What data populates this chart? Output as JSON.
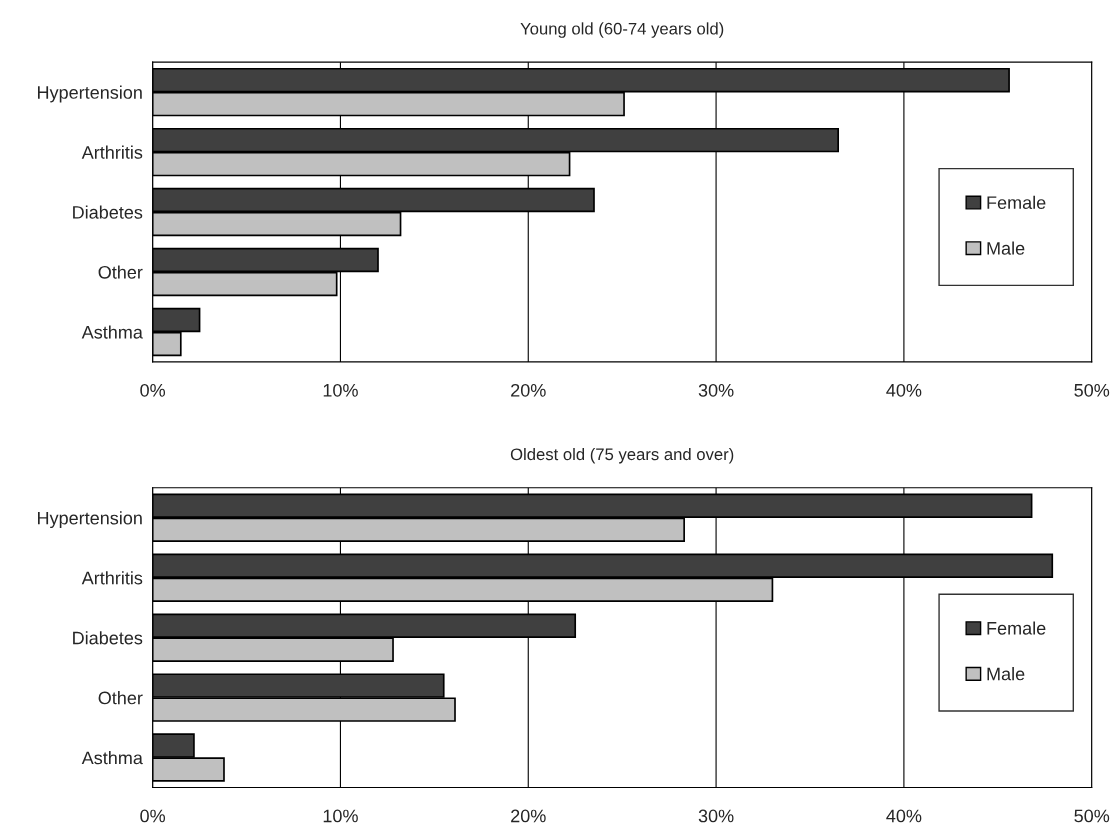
{
  "chart_data": [
    {
      "type": "bar",
      "orientation": "horizontal",
      "title": "Young old (60-74 years old)",
      "categories": [
        "Hypertension",
        "Arthritis",
        "Diabetes",
        "Other",
        "Asthma"
      ],
      "series": [
        {
          "name": "Female",
          "color": "#404040",
          "values": [
            45.6,
            36.5,
            23.5,
            12.0,
            2.5
          ]
        },
        {
          "name": "Male",
          "color": "#c0c0c0",
          "values": [
            25.1,
            22.2,
            13.2,
            9.8,
            1.5
          ]
        }
      ],
      "xlim": [
        0,
        50
      ],
      "xticks": [
        {
          "value": 0,
          "label": "0%"
        },
        {
          "value": 10,
          "label": "10%"
        },
        {
          "value": 20,
          "label": "20%"
        },
        {
          "value": 30,
          "label": "30%"
        },
        {
          "value": 40,
          "label": "40%"
        },
        {
          "value": 50,
          "label": "50%"
        }
      ],
      "grid": "x",
      "legend": "right"
    },
    {
      "type": "bar",
      "orientation": "horizontal",
      "title": "Oldest old (75 years and over)",
      "categories": [
        "Hypertension",
        "Arthritis",
        "Diabetes",
        "Other",
        "Asthma"
      ],
      "series": [
        {
          "name": "Female",
          "color": "#404040",
          "values": [
            46.8,
            47.9,
            22.5,
            15.5,
            2.2
          ]
        },
        {
          "name": "Male",
          "color": "#c0c0c0",
          "values": [
            28.3,
            33.0,
            12.8,
            16.1,
            3.8
          ]
        }
      ],
      "xlim": [
        0,
        50
      ],
      "xticks": [
        {
          "value": 0,
          "label": "0%"
        },
        {
          "value": 10,
          "label": "10%"
        },
        {
          "value": 20,
          "label": "20%"
        },
        {
          "value": 30,
          "label": "30%"
        },
        {
          "value": 40,
          "label": "40%"
        },
        {
          "value": 50,
          "label": "50%"
        }
      ],
      "grid": "x",
      "legend": "right"
    }
  ]
}
